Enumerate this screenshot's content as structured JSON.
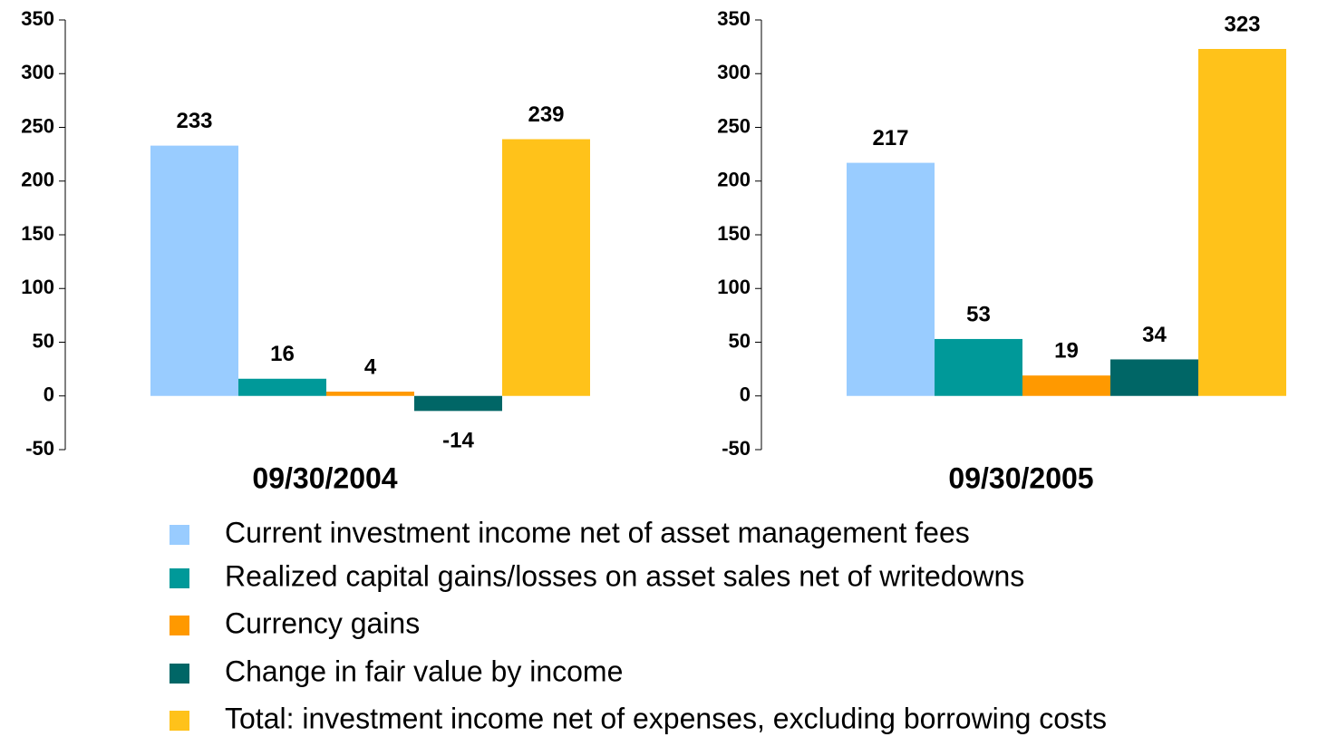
{
  "chart_data": {
    "type": "bar",
    "categories": [
      "09/30/2004",
      "09/30/2005"
    ],
    "series": [
      {
        "name": "Current investment income net of asset management fees",
        "color": "#99ccff",
        "values": [
          233,
          217
        ]
      },
      {
        "name": "Realized capital gains/losses on asset sales net of writedowns",
        "color": "#009999",
        "values": [
          16,
          53
        ]
      },
      {
        "name": "Currency gains",
        "color": "#ff9900",
        "values": [
          4,
          19
        ]
      },
      {
        "name": "Change in fair value by income",
        "color": "#006666",
        "values": [
          -14,
          34
        ]
      },
      {
        "name": "Total: investment income net of expenses, excluding borrowing costs",
        "color": "#ffc21a",
        "values": [
          239,
          323
        ]
      }
    ],
    "ylim": [
      -50,
      350
    ],
    "yticks": [
      -50,
      0,
      50,
      100,
      150,
      200,
      250,
      300,
      350
    ],
    "grid": false
  }
}
